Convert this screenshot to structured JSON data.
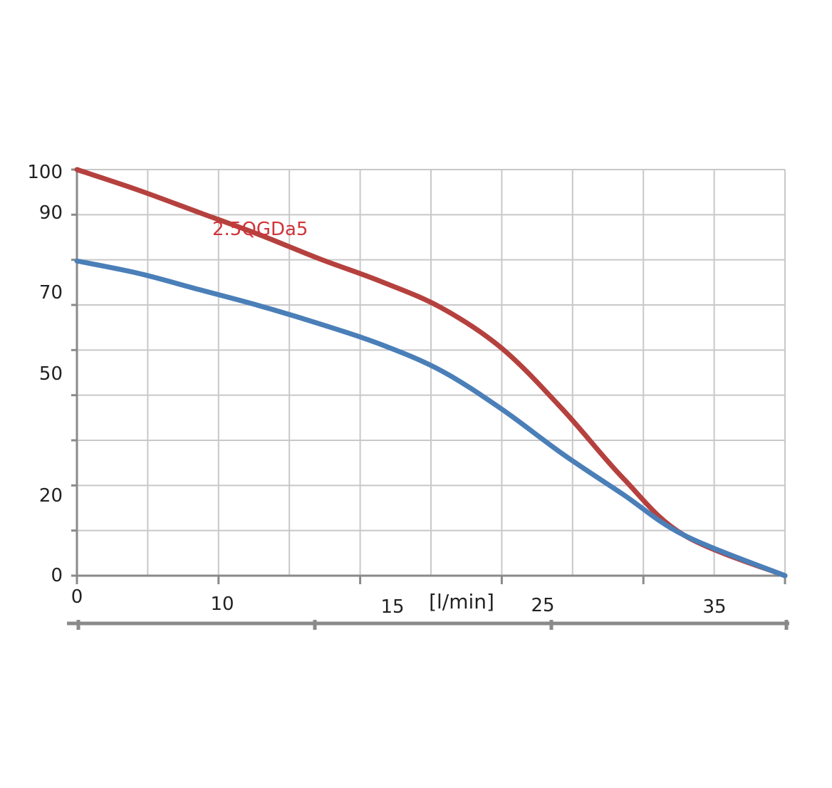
{
  "chart_data": {
    "type": "line",
    "title": "",
    "xlabel": "[l/min]",
    "ylabel": "",
    "xlim": [
      0,
      35
    ],
    "ylim": [
      0,
      100
    ],
    "grid": true,
    "x_tick_labels": [
      {
        "value": 0,
        "label": "0"
      },
      {
        "value": 10,
        "label": "10"
      },
      {
        "value": 15,
        "label": "15"
      },
      {
        "value": 25,
        "label": "25"
      },
      {
        "value": 35,
        "label": "35"
      }
    ],
    "y_tick_labels": [
      {
        "value": 100,
        "label": "100"
      },
      {
        "value": 90,
        "label": "90"
      },
      {
        "value": 70,
        "label": "70"
      },
      {
        "value": 50,
        "label": "50"
      },
      {
        "value": 20,
        "label": "20"
      },
      {
        "value": 0,
        "label": "0"
      }
    ],
    "series": [
      {
        "name": "2.5QGDa5",
        "color": "#b5413e",
        "points": [
          [
            0,
            100
          ],
          [
            3,
            95
          ],
          [
            6,
            89.5
          ],
          [
            9,
            84
          ],
          [
            12,
            78
          ],
          [
            15,
            72.5
          ],
          [
            18,
            66
          ],
          [
            21,
            56
          ],
          [
            24,
            41
          ],
          [
            27,
            24
          ],
          [
            30,
            10
          ],
          [
            35,
            0
          ]
        ]
      },
      {
        "color": "#4a7fb8",
        "points": [
          [
            0,
            77.5
          ],
          [
            3,
            74.5
          ],
          [
            6,
            70.5
          ],
          [
            9,
            66.5
          ],
          [
            12,
            62
          ],
          [
            15,
            57
          ],
          [
            18,
            50.5
          ],
          [
            21,
            41
          ],
          [
            24,
            30
          ],
          [
            27,
            20
          ],
          [
            30,
            10
          ],
          [
            35,
            0
          ]
        ]
      }
    ]
  }
}
